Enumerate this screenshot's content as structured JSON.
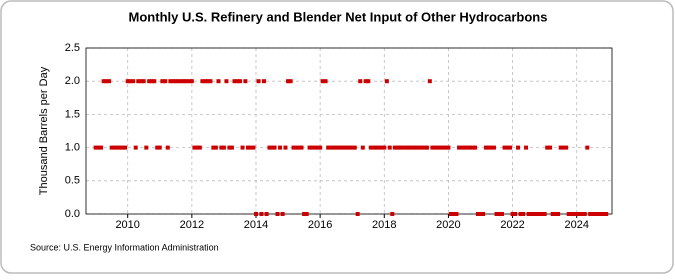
{
  "chart_data": {
    "type": "scatter",
    "title": "Monthly U.S. Refinery and Blender Net Input of Other Hydrocarbons",
    "y_label": "Thousand Barrels per Day",
    "source": "Source: U.S. Energy Information Administration",
    "color": "#cc0000",
    "grid": true,
    "xlim": [
      2008.7,
      2025.1
    ],
    "xticks": [
      2010,
      2012,
      2014,
      2016,
      2018,
      2020,
      2022,
      2024
    ],
    "ylim": [
      0,
      2.5
    ],
    "yticks": [
      {
        "value": 0,
        "label": "0.0"
      },
      {
        "value": 0.5,
        "label": "0.5"
      },
      {
        "value": 1,
        "label": "1.0"
      },
      {
        "value": 1.5,
        "label": "1.5"
      },
      {
        "value": 2,
        "label": "2.0"
      },
      {
        "value": 2.5,
        "label": "2.5"
      }
    ],
    "x": [
      2009,
      2009.08,
      2009.17,
      2009.25,
      2009.33,
      2009.42,
      2009.5,
      2009.58,
      2009.67,
      2009.75,
      2009.83,
      2009.92,
      2010,
      2010.08,
      2010.17,
      2010.25,
      2010.33,
      2010.42,
      2010.5,
      2010.58,
      2010.67,
      2010.75,
      2010.83,
      2010.92,
      2011,
      2011.08,
      2011.17,
      2011.25,
      2011.33,
      2011.42,
      2011.5,
      2011.58,
      2011.67,
      2011.75,
      2011.83,
      2011.92,
      2012,
      2012.08,
      2012.17,
      2012.25,
      2012.33,
      2012.42,
      2012.5,
      2012.58,
      2012.67,
      2012.75,
      2012.83,
      2012.92,
      2013,
      2013.08,
      2013.17,
      2013.25,
      2013.33,
      2013.42,
      2013.5,
      2013.58,
      2013.67,
      2013.75,
      2013.83,
      2013.92,
      2014,
      2014.08,
      2014.17,
      2014.25,
      2014.33,
      2014.42,
      2014.5,
      2014.58,
      2014.67,
      2014.75,
      2014.83,
      2014.92,
      2015,
      2015.08,
      2015.17,
      2015.25,
      2015.33,
      2015.42,
      2015.5,
      2015.58,
      2015.67,
      2015.75,
      2015.83,
      2015.92,
      2016,
      2016.08,
      2016.17,
      2016.25,
      2016.33,
      2016.42,
      2016.5,
      2016.58,
      2016.67,
      2016.75,
      2016.83,
      2016.92,
      2017,
      2017.08,
      2017.17,
      2017.25,
      2017.33,
      2017.42,
      2017.5,
      2017.58,
      2017.67,
      2017.75,
      2017.83,
      2017.92,
      2018,
      2018.08,
      2018.17,
      2018.25,
      2018.33,
      2018.42,
      2018.5,
      2018.58,
      2018.67,
      2018.75,
      2018.83,
      2018.92,
      2019,
      2019.08,
      2019.17,
      2019.25,
      2019.33,
      2019.42,
      2019.5,
      2019.58,
      2019.67,
      2019.75,
      2019.83,
      2019.92,
      2020,
      2020.08,
      2020.17,
      2020.25,
      2020.33,
      2020.42,
      2020.5,
      2020.58,
      2020.67,
      2020.75,
      2020.83,
      2020.92,
      2021,
      2021.08,
      2021.17,
      2021.25,
      2021.33,
      2021.42,
      2021.5,
      2021.58,
      2021.67,
      2021.75,
      2021.83,
      2021.92,
      2022,
      2022.08,
      2022.17,
      2022.25,
      2022.33,
      2022.42,
      2022.5,
      2022.58,
      2022.67,
      2022.75,
      2022.83,
      2022.92,
      2023,
      2023.08,
      2023.17,
      2023.25,
      2023.33,
      2023.42,
      2023.5,
      2023.58,
      2023.67,
      2023.75,
      2023.83,
      2023.92,
      2024,
      2024.08,
      2024.17,
      2024.25,
      2024.33,
      2024.42,
      2024.5,
      2024.58,
      2024.67,
      2024.75,
      2024.83,
      2024.92
    ],
    "values": [
      1,
      1,
      1,
      2,
      2,
      2,
      1,
      1,
      1,
      1,
      1,
      1,
      2,
      2,
      2,
      1,
      2,
      2,
      2,
      1,
      2,
      2,
      2,
      1,
      1,
      2,
      2,
      1,
      2,
      2,
      2,
      2,
      2,
      2,
      2,
      2,
      2,
      1,
      1,
      1,
      2,
      2,
      2,
      2,
      1,
      1,
      2,
      1,
      1,
      2,
      1,
      1,
      2,
      2,
      2,
      1,
      2,
      1,
      1,
      1,
      0,
      2,
      0,
      2,
      0,
      1,
      1,
      1,
      0,
      1,
      0,
      1,
      2,
      2,
      1,
      1,
      1,
      1,
      0,
      0,
      1,
      1,
      1,
      1,
      1,
      2,
      2,
      1,
      1,
      1,
      1,
      1,
      1,
      1,
      1,
      1,
      1,
      1,
      0,
      2,
      1,
      2,
      2,
      1,
      1,
      1,
      1,
      1,
      1,
      2,
      1,
      0,
      1,
      1,
      1,
      1,
      1,
      1,
      1,
      1,
      1,
      1,
      1,
      1,
      1,
      2,
      1,
      1,
      1,
      1,
      1,
      1,
      1,
      0,
      0,
      0,
      1,
      1,
      1,
      1,
      1,
      1,
      1,
      0,
      0,
      0,
      1,
      1,
      1,
      1,
      0,
      0,
      0,
      1,
      1,
      1,
      0,
      0,
      1,
      0,
      0,
      1,
      0,
      0,
      0,
      0,
      0,
      0,
      0,
      1,
      1,
      0,
      0,
      0,
      1,
      1,
      1,
      0,
      0,
      0,
      0,
      0,
      0,
      0,
      1,
      0,
      0,
      0,
      0,
      0,
      0,
      0
    ]
  }
}
